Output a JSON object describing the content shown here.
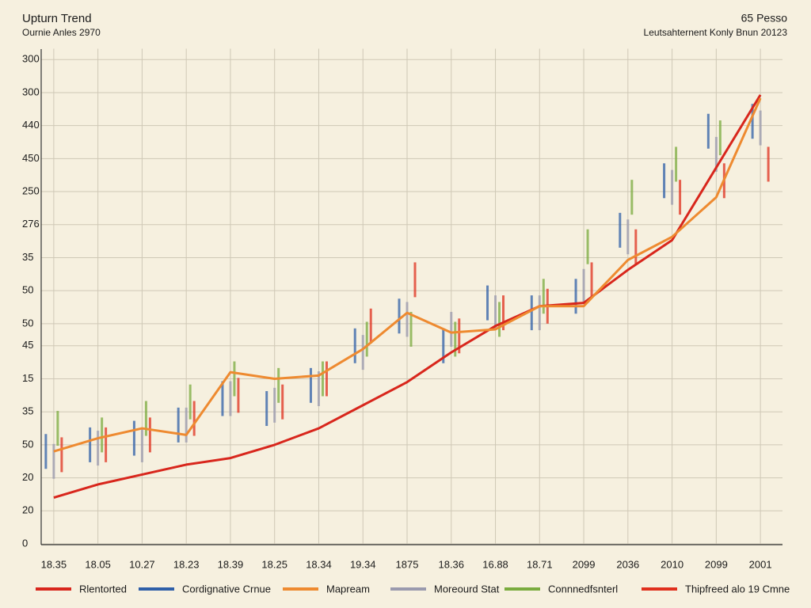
{
  "chart_data": {
    "type": "line",
    "title": "Upturn Trend",
    "subtitle": "Ournie Anles 2970",
    "annotations": [
      "65 Pesso",
      "Leutsahternent Konly Bnun 20123"
    ],
    "categories": [
      "18.35",
      "18.05",
      "10.27",
      "18.23",
      "18.39",
      "18.25",
      "18.34",
      "19.34",
      "1875",
      "18.36",
      "16.88",
      "18.71",
      "2099",
      "2036",
      "2010",
      "2099",
      "2001"
    ],
    "ylim": [
      0,
      15
    ],
    "yticks": [
      0,
      {
        "value": 1,
        "label": "20"
      },
      {
        "value": 2,
        "label": "20"
      },
      {
        "value": 3,
        "label": "50"
      },
      {
        "value": 4,
        "label": "35"
      },
      {
        "value": 5,
        "label": "15"
      },
      {
        "value": 6,
        "label": "45"
      },
      {
        "value": 6.67,
        "label": "50"
      },
      {
        "value": 7.67,
        "label": "50"
      },
      {
        "value": 8.67,
        "label": "35"
      },
      {
        "value": 9.67,
        "label": "276"
      },
      {
        "value": 10.67,
        "label": "250"
      },
      {
        "value": 11.67,
        "label": "450"
      },
      {
        "value": 12.67,
        "label": "440"
      },
      {
        "value": 13.67,
        "label": "300"
      },
      {
        "value": 14.67,
        "label": "300"
      }
    ],
    "grid": true,
    "series": [
      {
        "name": "Rlentorted",
        "color": "#d8261c",
        "style": "line",
        "values": [
          1.4,
          1.8,
          2.1,
          2.4,
          2.6,
          3.0,
          3.5,
          4.2,
          4.9,
          5.8,
          6.6,
          7.2,
          7.3,
          8.3,
          9.2,
          11.4,
          13.6
        ]
      },
      {
        "name": "Cordignative Crnue",
        "color": "#2f5fa8",
        "style": "stick",
        "values": [
          2.8,
          3.0,
          3.2,
          3.6,
          4.4,
          4.1,
          4.8,
          6.0,
          6.9,
          6.0,
          7.3,
          7.0,
          7.5,
          9.5,
          11.0,
          12.5,
          12.8
        ]
      },
      {
        "name": "Mapream",
        "color": "#ee8a30",
        "style": "line",
        "values": [
          2.8,
          3.2,
          3.5,
          3.3,
          5.2,
          5.0,
          5.1,
          5.9,
          7.0,
          6.4,
          6.5,
          7.2,
          7.2,
          8.6,
          9.3,
          10.5,
          13.5
        ]
      },
      {
        "name": "Moreourd Stat",
        "color": "#9a9aae",
        "style": "stick",
        "values": [
          2.5,
          2.9,
          3.0,
          3.6,
          4.4,
          4.2,
          4.7,
          5.8,
          6.8,
          6.5,
          7.0,
          7.0,
          7.8,
          9.3,
          10.8,
          11.8,
          12.6
        ]
      },
      {
        "name": "Connnedfsnterl",
        "color": "#7aab3e",
        "style": "stick",
        "values": [
          3.5,
          3.3,
          3.8,
          4.3,
          5.0,
          4.8,
          5.0,
          6.2,
          6.5,
          6.2,
          6.8,
          7.5,
          9.0,
          10.5,
          11.5,
          12.3,
          null
        ]
      },
      {
        "name": "Thipfreed alo 19 Cmne",
        "color": "#e0301e",
        "style": "stick",
        "values": [
          2.7,
          3.0,
          3.3,
          3.8,
          4.5,
          4.3,
          5.0,
          6.6,
          8.0,
          6.3,
          7.0,
          7.2,
          8.0,
          9.0,
          10.5,
          11.0,
          11.5
        ]
      }
    ]
  }
}
